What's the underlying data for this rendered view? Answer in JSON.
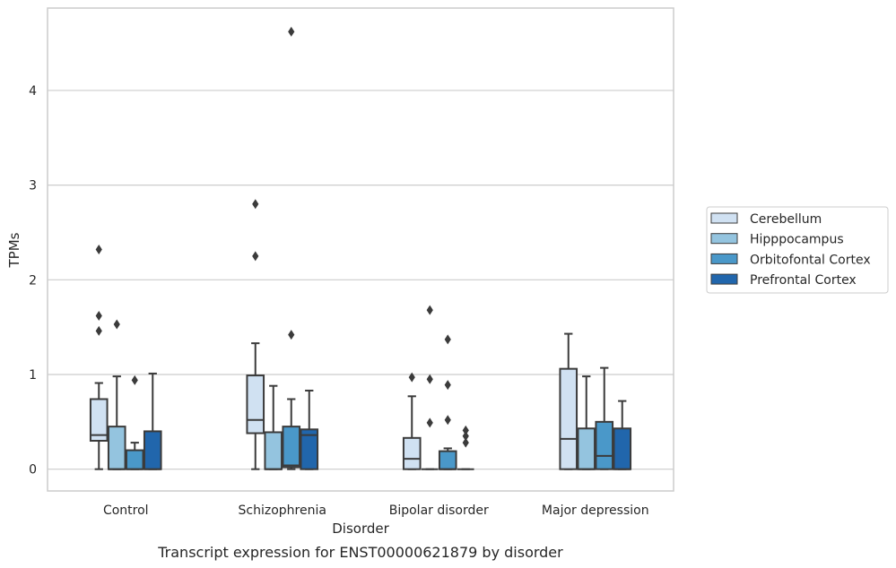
{
  "chart_data": {
    "type": "box",
    "title": "",
    "caption": "Transcript expression for ENST00000621879 by disorder",
    "xlabel": "Disorder",
    "ylabel": "TPMs",
    "ylim": [
      -0.23,
      4.87
    ],
    "yticks": [
      "0",
      "1",
      "2",
      "3",
      "4"
    ],
    "categories": [
      "Control",
      "Schizophrenia",
      "Bipolar disorder",
      "Major depression"
    ],
    "grid": "horizontal",
    "legend_position": "right",
    "series": [
      {
        "name": "Cerebellum",
        "color": "#d0e1f2",
        "boxes": [
          {
            "whisker_low": 0.0,
            "q1": 0.3,
            "median": 0.36,
            "q3": 0.74,
            "whisker_high": 0.91,
            "outliers": [
              1.46,
              1.62,
              2.32
            ]
          },
          {
            "whisker_low": 0.0,
            "q1": 0.38,
            "median": 0.52,
            "q3": 0.99,
            "whisker_high": 1.33,
            "outliers": [
              2.25,
              2.8
            ]
          },
          {
            "whisker_low": 0.0,
            "q1": 0.0,
            "median": 0.11,
            "q3": 0.33,
            "whisker_high": 0.77,
            "outliers": [
              0.97
            ]
          },
          {
            "whisker_low": 0.0,
            "q1": 0.0,
            "median": 0.32,
            "q3": 1.06,
            "whisker_high": 1.43,
            "outliers": []
          }
        ]
      },
      {
        "name": "Hipppocampus",
        "color": "#94c4df",
        "boxes": [
          {
            "whisker_low": 0.0,
            "q1": 0.0,
            "median": 0.0,
            "q3": 0.45,
            "whisker_high": 0.98,
            "outliers": [
              1.53
            ]
          },
          {
            "whisker_low": 0.0,
            "q1": 0.0,
            "median": 0.0,
            "q3": 0.39,
            "whisker_high": 0.88,
            "outliers": []
          },
          {
            "whisker_low": 0.0,
            "q1": 0.0,
            "median": 0.0,
            "q3": 0.0,
            "whisker_high": 0.0,
            "outliers": [
              0.49,
              0.95,
              1.68
            ]
          },
          {
            "whisker_low": 0.0,
            "q1": 0.0,
            "median": 0.0,
            "q3": 0.43,
            "whisker_high": 0.98,
            "outliers": []
          }
        ]
      },
      {
        "name": "Orbitofontal Cortex",
        "color": "#4a98c9",
        "boxes": [
          {
            "whisker_low": 0.0,
            "q1": 0.0,
            "median": 0.0,
            "q3": 0.2,
            "whisker_high": 0.28,
            "outliers": [
              0.94
            ]
          },
          {
            "whisker_low": 0.0,
            "q1": 0.02,
            "median": 0.04,
            "q3": 0.45,
            "whisker_high": 0.74,
            "outliers": [
              1.42,
              4.62
            ]
          },
          {
            "whisker_low": 0.0,
            "q1": 0.0,
            "median": 0.0,
            "q3": 0.19,
            "whisker_high": 0.22,
            "outliers": [
              0.52,
              0.89,
              1.37
            ]
          },
          {
            "whisker_low": 0.0,
            "q1": 0.0,
            "median": 0.14,
            "q3": 0.5,
            "whisker_high": 1.07,
            "outliers": []
          }
        ]
      },
      {
        "name": "Prefrontal Cortex",
        "color": "#2166ac",
        "boxes": [
          {
            "whisker_low": 0.0,
            "q1": 0.0,
            "median": 0.0,
            "q3": 0.4,
            "whisker_high": 1.01,
            "outliers": []
          },
          {
            "whisker_low": 0.0,
            "q1": 0.0,
            "median": 0.36,
            "q3": 0.42,
            "whisker_high": 0.83,
            "outliers": []
          },
          {
            "whisker_low": 0.0,
            "q1": 0.0,
            "median": 0.0,
            "q3": 0.0,
            "whisker_high": 0.0,
            "outliers": [
              0.28,
              0.35,
              0.41
            ]
          },
          {
            "whisker_low": 0.0,
            "q1": 0.0,
            "median": 0.0,
            "q3": 0.43,
            "whisker_high": 0.72,
            "outliers": []
          }
        ]
      }
    ]
  }
}
